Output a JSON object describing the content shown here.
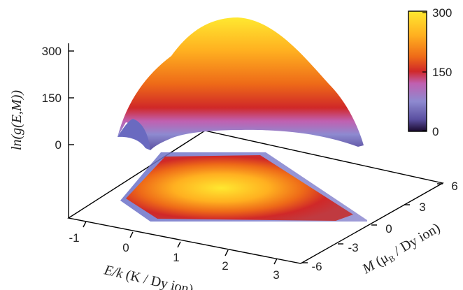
{
  "chart_data": {
    "type": "surface3d",
    "title": "",
    "xaxis": {
      "label_parts": [
        "E/k",
        " (K / Dy ion)"
      ],
      "ticks": [
        "-1",
        "0",
        "1",
        "2",
        "3"
      ],
      "range": [
        -1.4,
        3.6
      ]
    },
    "yaxis": {
      "label_parts": [
        "M",
        " (μ",
        "B",
        " / Dy ion)"
      ],
      "ticks": [
        "-6",
        "-3",
        "0",
        "3",
        "6"
      ],
      "range": [
        -6.5,
        6.5
      ]
    },
    "zaxis": {
      "label": "ln(g(E,M))",
      "ticks": [
        "300",
        "150",
        "0"
      ],
      "range": [
        0,
        320
      ]
    },
    "colorbar": {
      "ticks": [
        "300",
        "150",
        "0"
      ],
      "range": [
        0,
        310
      ],
      "colors": [
        "#1a0a2e",
        "#5a4fa0",
        "#8e8ad0",
        "#c060b0",
        "#d02828",
        "#ee6a18",
        "#ffb020",
        "#ffe830"
      ]
    },
    "surface_peak": {
      "E": 1.2,
      "M": 0,
      "lng": 310
    },
    "projection": "heatmap of ln(g(E,M)) drawn on the base plane"
  }
}
